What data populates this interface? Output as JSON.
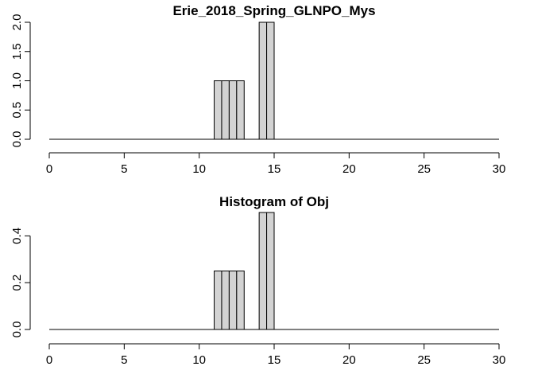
{
  "chart_data": [
    {
      "type": "bar",
      "title": "Erie_2018_Spring_GLNPO_Mys",
      "xlabel": "",
      "ylabel": "",
      "bin_width": 0.5,
      "bins": [
        {
          "x0": 11.0,
          "x1": 11.5,
          "value": 1
        },
        {
          "x0": 11.5,
          "x1": 12.0,
          "value": 1
        },
        {
          "x0": 12.0,
          "x1": 12.5,
          "value": 1
        },
        {
          "x0": 12.5,
          "x1": 13.0,
          "value": 1
        },
        {
          "x0": 14.0,
          "x1": 14.5,
          "value": 2
        },
        {
          "x0": 14.5,
          "x1": 15.0,
          "value": 2
        }
      ],
      "xlim": [
        0,
        30
      ],
      "ylim": [
        0,
        2
      ],
      "xticks": [
        0,
        5,
        10,
        15,
        20,
        25,
        30
      ],
      "xtick_labels": [
        "0",
        "5",
        "10",
        "15",
        "20",
        "25",
        "30"
      ],
      "yticks": [
        0,
        0.5,
        1,
        1.5,
        2
      ],
      "ytick_labels": [
        "0.0",
        "0.5",
        "1.0",
        "1.5",
        "2.0"
      ],
      "grid": false
    },
    {
      "type": "bar",
      "title": "Histogram of Obj",
      "xlabel": "",
      "ylabel": "",
      "bin_width": 0.5,
      "bins": [
        {
          "x0": 11.0,
          "x1": 11.5,
          "value": 0.25
        },
        {
          "x0": 11.5,
          "x1": 12.0,
          "value": 0.25
        },
        {
          "x0": 12.0,
          "x1": 12.5,
          "value": 0.25
        },
        {
          "x0": 12.5,
          "x1": 13.0,
          "value": 0.25
        },
        {
          "x0": 14.0,
          "x1": 14.5,
          "value": 0.5
        },
        {
          "x0": 14.5,
          "x1": 15.0,
          "value": 0.5
        }
      ],
      "xlim": [
        0,
        30
      ],
      "ylim": [
        0,
        0.5
      ],
      "xticks": [
        0,
        5,
        10,
        15,
        20,
        25,
        30
      ],
      "xtick_labels": [
        "0",
        "5",
        "10",
        "15",
        "20",
        "25",
        "30"
      ],
      "yticks": [
        0,
        0.2,
        0.4
      ],
      "ytick_labels": [
        "0.0",
        "0.2",
        "0.4"
      ],
      "grid": false
    }
  ]
}
